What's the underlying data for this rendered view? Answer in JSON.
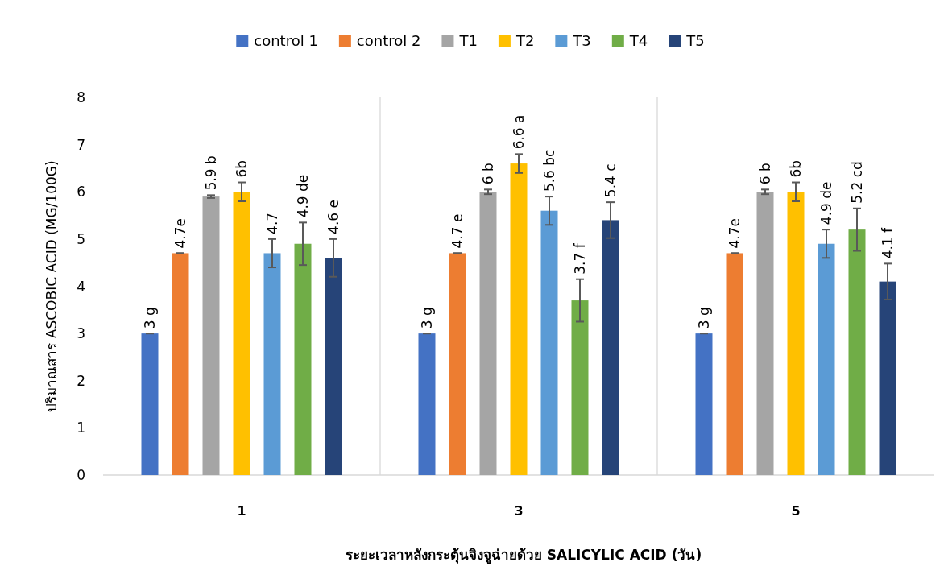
{
  "chart_data": {
    "type": "bar",
    "xlabel": "ระยะเวลาหลังกระตุ้นจิงจูฉ่ายด้วย SALICYLIC ACID (วัน)",
    "ylabel": "ปริมาณสาร ASCOBIC ACID (MG/100G)",
    "categories": [
      "1",
      "3",
      "5"
    ],
    "ylim": [
      0,
      8
    ],
    "yticks": [
      0,
      1,
      2,
      3,
      4,
      5,
      6,
      7,
      8
    ],
    "grid": "x",
    "legend": "top",
    "series": [
      {
        "name": "control 1",
        "color": "#4472c4",
        "values": [
          3,
          3,
          3
        ],
        "errors": [
          0,
          0,
          0
        ],
        "value_labels": [
          "3 g",
          "3 g",
          "3 g"
        ]
      },
      {
        "name": "control 2",
        "color": "#ed7d31",
        "values": [
          4.7,
          4.7,
          4.7
        ],
        "errors": [
          0,
          0,
          0
        ],
        "value_labels": [
          "4.7e",
          "4.7 e",
          "4.7e"
        ]
      },
      {
        "name": "T1",
        "color": "#a5a5a5",
        "values": [
          5.9,
          6,
          6
        ],
        "errors": [
          0.03,
          0.05,
          0.05
        ],
        "value_labels": [
          "5.9 b",
          "6 b",
          "6 b"
        ]
      },
      {
        "name": "T2",
        "color": "#ffc000",
        "values": [
          6,
          6.6,
          6
        ],
        "errors": [
          0.2,
          0.2,
          0.2
        ],
        "value_labels": [
          "6b",
          "6.6 a",
          "6b"
        ]
      },
      {
        "name": "T3",
        "color": "#5b9bd5",
        "values": [
          4.7,
          5.6,
          4.9
        ],
        "errors": [
          0.3,
          0.3,
          0.3
        ],
        "value_labels": [
          "4.7",
          "5.6 bc",
          "4.9 de"
        ]
      },
      {
        "name": "T4",
        "color": "#70ad47",
        "values": [
          4.9,
          3.7,
          5.2
        ],
        "errors": [
          0.45,
          0.45,
          0.45
        ],
        "value_labels": [
          "4.9 de",
          "3.7 f",
          "5.2 cd"
        ]
      },
      {
        "name": "T5",
        "color": "#264478",
        "values": [
          4.6,
          5.4,
          4.1
        ],
        "errors": [
          0.4,
          0.38,
          0.38
        ],
        "value_labels": [
          "4.6 e",
          "5.4 c",
          "4.1 f"
        ]
      }
    ]
  }
}
